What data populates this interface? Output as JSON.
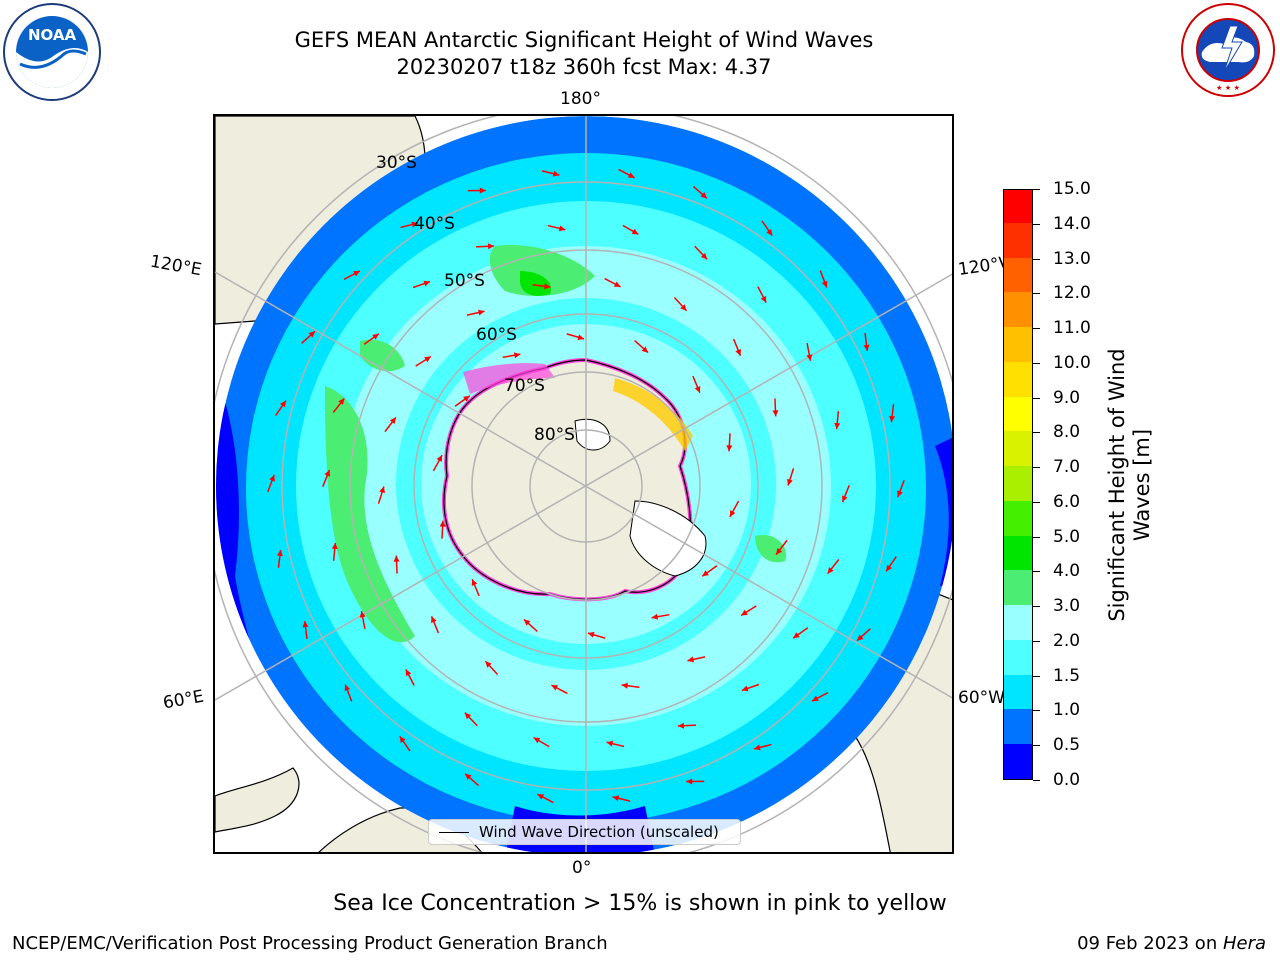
{
  "title_line1": "GEFS MEAN Antarctic Significant Height of Wind Waves",
  "title_line2": "20230207 t18z 360h fcst   Max: 4.37",
  "noaa_logo": {
    "wordmark": "NOAA",
    "ring_text": "NATIONAL OCEANIC AND ATMOSPHERIC ADMINISTRATION · U.S. DEPARTMENT OF COMMERCE"
  },
  "nws_logo": {
    "ring_text": "NATIONAL WEATHER SERVICE"
  },
  "map": {
    "projection": "south polar stereographic",
    "parallels": [
      "30°S",
      "40°S",
      "50°S",
      "60°S",
      "70°S",
      "80°S"
    ],
    "meridians": {
      "top": "180°",
      "bottom": "0°",
      "left_upper": "120°E",
      "left_lower": "60°E",
      "right_upper": "120°W",
      "right_lower": "60°W"
    },
    "colors": {
      "land": "#efedde",
      "coast": "#000000",
      "grid": "#b3b3b3",
      "arrow": "#ff0000",
      "ice_edge": "#ff44dd"
    }
  },
  "legend": {
    "label": "Wind Wave Direction (unscaled)"
  },
  "colorbar": {
    "label": "Significant Height of Wind Waves [m]",
    "ticks": [
      "0.0",
      "0.5",
      "1.0",
      "1.5",
      "2.0",
      "3.0",
      "4.0",
      "5.0",
      "6.0",
      "7.0",
      "8.0",
      "9.0",
      "10.0",
      "11.0",
      "12.0",
      "13.0",
      "14.0",
      "15.0"
    ],
    "colors": [
      "#0000ff",
      "#0073ff",
      "#00e5ff",
      "#4dffff",
      "#99ffff",
      "#4ced73",
      "#00e500",
      "#44f000",
      "#aaef00",
      "#d8f200",
      "#ffff00",
      "#ffe000",
      "#ffc000",
      "#ff9000",
      "#ff6000",
      "#ff3000",
      "#ff0000"
    ]
  },
  "note": "Sea Ice Concentration > 15% is shown in pink to yellow",
  "footer_left": "NCEP/EMC/Verification Post Processing Product Generation Branch",
  "footer_date": "09 Feb 2023 on ",
  "footer_machine": "Hera"
}
